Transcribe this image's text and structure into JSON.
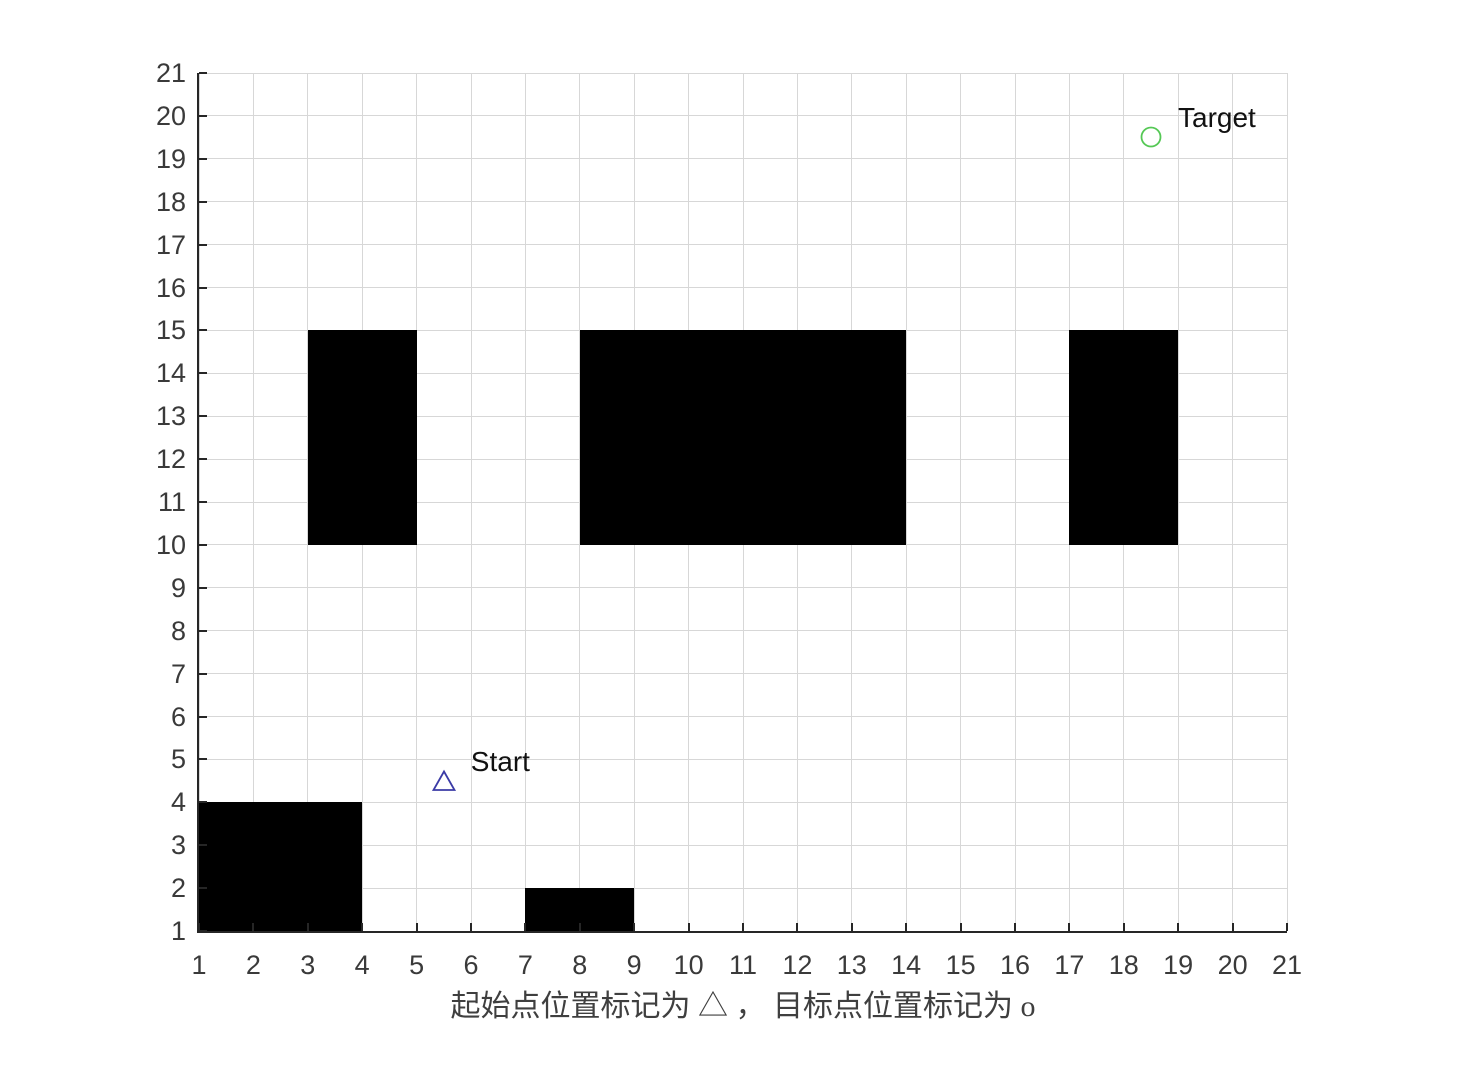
{
  "figure": {
    "background": "#ffffff",
    "caption": "起始点位置标记为 △ ， 目标点位置标记为 o"
  },
  "chart_data": {
    "type": "heatmap",
    "subtype": "occupancy-grid-map",
    "title": "",
    "xlabel": "",
    "ylabel": "",
    "xlim": [
      1,
      21
    ],
    "ylim": [
      1,
      21
    ],
    "grid": true,
    "legend_position": "none",
    "x_ticks": [
      "1",
      "2",
      "3",
      "4",
      "5",
      "6",
      "7",
      "8",
      "9",
      "10",
      "11",
      "12",
      "13",
      "14",
      "15",
      "16",
      "17",
      "18",
      "19",
      "20",
      "21"
    ],
    "y_ticks": [
      "1",
      "2",
      "3",
      "4",
      "5",
      "6",
      "7",
      "8",
      "9",
      "10",
      "11",
      "12",
      "13",
      "14",
      "15",
      "16",
      "17",
      "18",
      "19",
      "20",
      "21"
    ],
    "obstacles": [
      {
        "x1": 1,
        "y1": 1,
        "x2": 4,
        "y2": 4
      },
      {
        "x1": 7,
        "y1": 1,
        "x2": 9,
        "y2": 2
      },
      {
        "x1": 3,
        "y1": 10,
        "x2": 5,
        "y2": 15
      },
      {
        "x1": 8,
        "y1": 10,
        "x2": 14,
        "y2": 15
      },
      {
        "x1": 17,
        "y1": 10,
        "x2": 19,
        "y2": 15
      }
    ],
    "markers": {
      "start": {
        "x": 5.5,
        "y": 4.5,
        "label": "Start",
        "symbol": "triangle",
        "color": "#3b3ba6"
      },
      "target": {
        "x": 18.5,
        "y": 19.5,
        "label": "Target",
        "symbol": "circle",
        "color": "#55c855"
      }
    },
    "colors": {
      "obstacle": "#000000",
      "grid": "#d7d7d7",
      "axis": "#262626",
      "tick_label": "#3a3a3a",
      "marker_label": "#111111",
      "caption": "#3f3f3f",
      "background": "#ffffff"
    },
    "caption": "起始点位置标记为 △ ， 目标点位置标记为 o"
  }
}
